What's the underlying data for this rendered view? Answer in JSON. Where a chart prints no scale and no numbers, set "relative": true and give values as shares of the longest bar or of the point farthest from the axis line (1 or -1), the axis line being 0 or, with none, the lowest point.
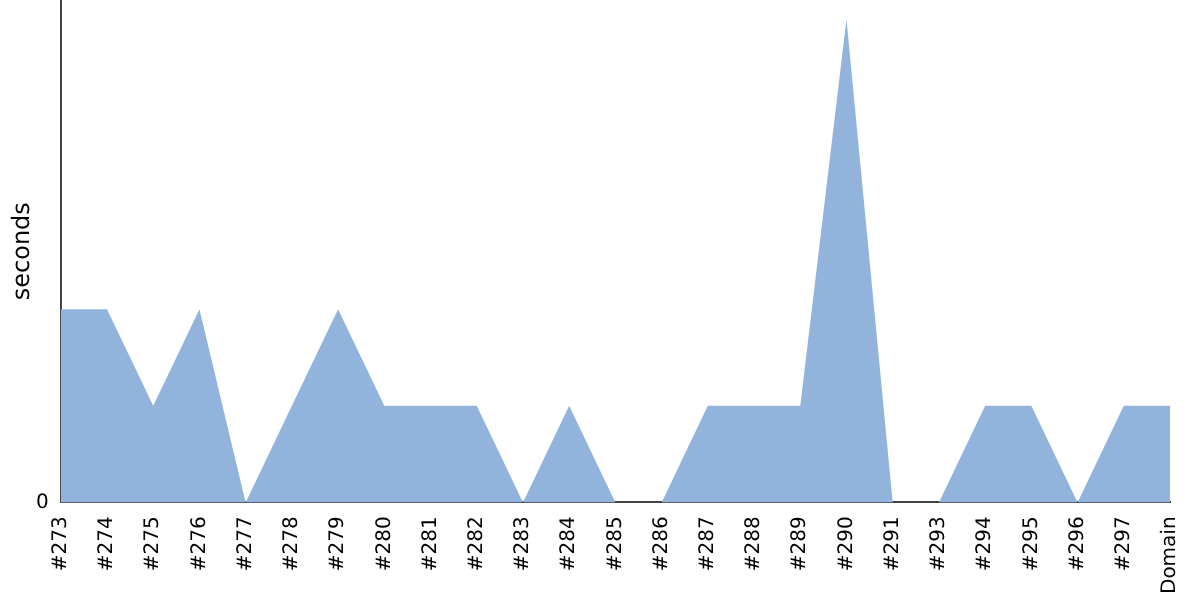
{
  "chart_data": {
    "type": "area",
    "ylabel": "seconds",
    "relative": true,
    "annotations": [
      "0"
    ],
    "grid": false,
    "legend": false,
    "categories": [
      "#273",
      "#274",
      "#275",
      "#276",
      "#277",
      "#278",
      "#279",
      "#280",
      "#281",
      "#282",
      "#283",
      "#284",
      "#285",
      "#286",
      "#287",
      "#288",
      "#289",
      "#290",
      "#291",
      "#293",
      "#294",
      "#295",
      "#296",
      "#297",
      "Domain"
    ],
    "series": [
      {
        "color": "#92b4dc",
        "values": [
          0.4,
          0.4,
          0.2,
          0.4,
          0,
          0.2,
          0.4,
          0.2,
          0.2,
          0.2,
          0,
          0.2,
          0,
          0,
          0.2,
          0.2,
          0.2,
          1,
          0,
          0,
          0.2,
          0.2,
          0,
          0.2,
          0.2
        ]
      }
    ]
  }
}
